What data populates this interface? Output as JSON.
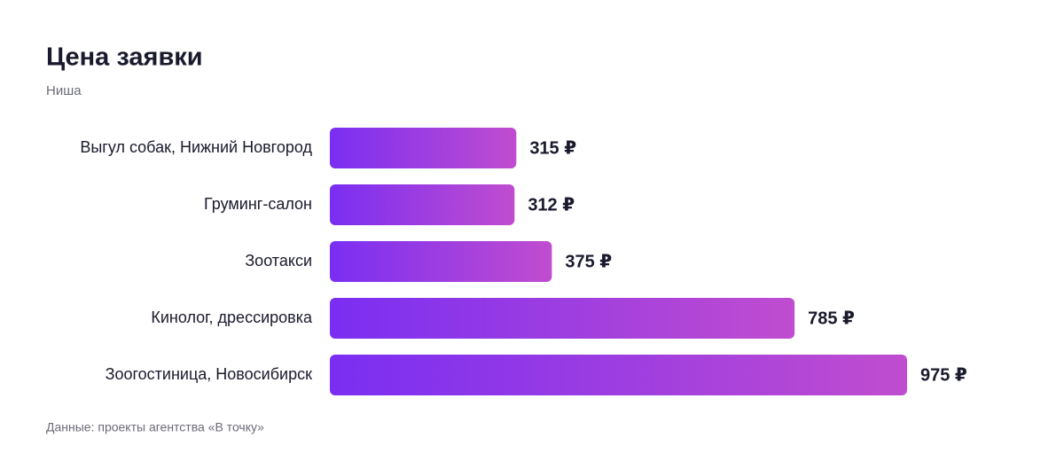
{
  "chart_data": {
    "type": "bar",
    "orientation": "horizontal",
    "title": "Цена заявки",
    "subtitle": "Ниша",
    "categories": [
      "Выгул собак, Нижний Новгород",
      "Груминг-салон",
      "Зоотакси",
      "Кинолог, дрессировка",
      "Зоогостиница, Новосибирск"
    ],
    "values": [
      315,
      312,
      375,
      785,
      975
    ],
    "value_labels": [
      "315 ₽",
      "312 ₽",
      "375 ₽",
      "785 ₽",
      "975 ₽"
    ],
    "colors": [
      "#7a2ef2",
      "#c04dcf"
    ],
    "source": "Данные: проекты агентства «В точку»"
  }
}
